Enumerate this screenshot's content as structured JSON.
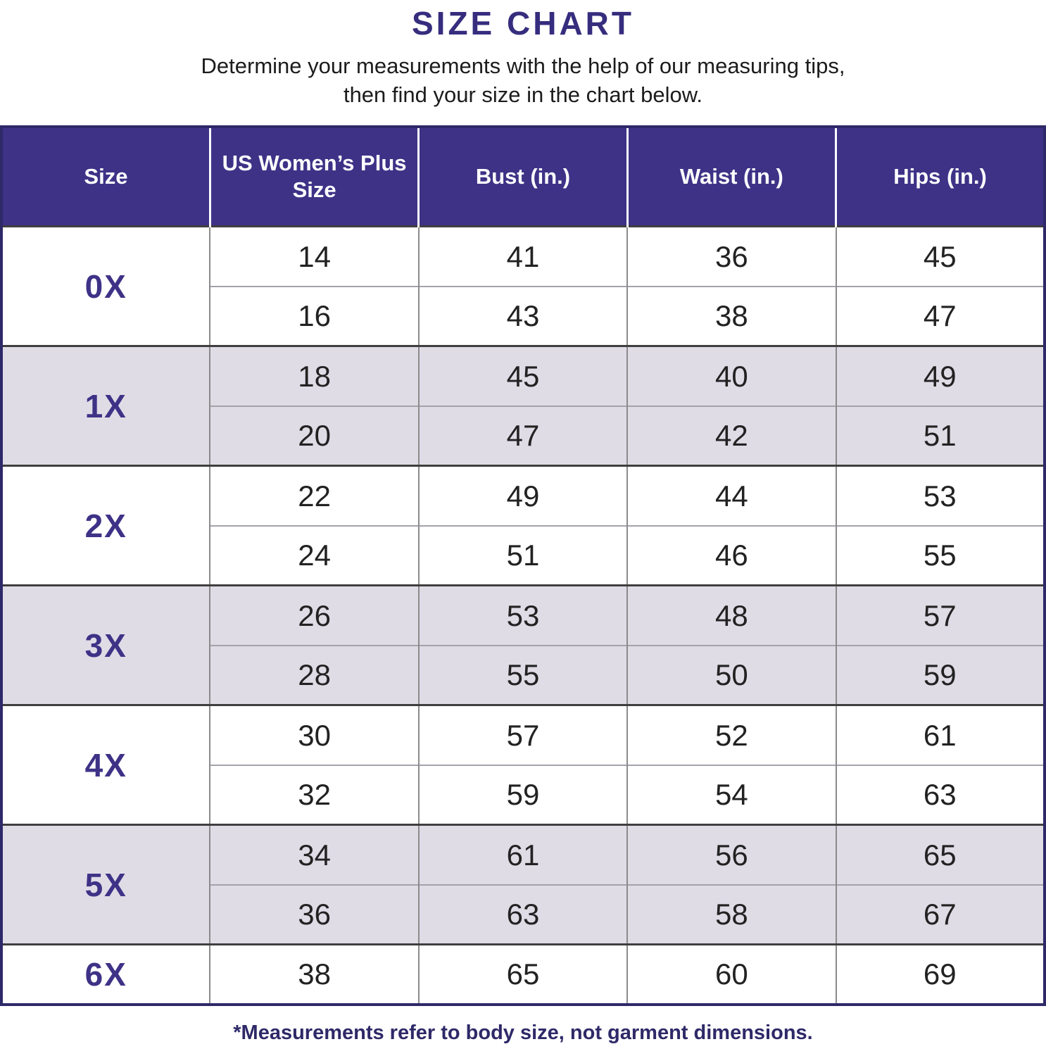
{
  "page": {
    "title": "SIZE CHART",
    "subtitle_line1": "Determine your measurements with the help of our measuring tips,",
    "subtitle_line2": "then find your size in the chart below.",
    "footnote": "*Measurements refer to body size, not garment dimensions."
  },
  "colors": {
    "header_bg": "#3E3287",
    "title_text": "#362D7E",
    "size_label_text": "#3E3287",
    "row_bg": "#FFFFFF",
    "row_alt_bg": "#E0DCE6",
    "data_text": "#222222",
    "outer_border": "#2E2968",
    "group_divider": "#3F3F3F",
    "cell_divider": "#8B8B8B"
  },
  "chart_data": {
    "type": "table",
    "title": "SIZE CHART",
    "columns": [
      "Size",
      "US Women’s Plus Size",
      "Bust (in.)",
      "Waist (in.)",
      "Hips (in.)"
    ],
    "groups": [
      {
        "size": "0X",
        "rows": [
          [
            14,
            41,
            36,
            45
          ],
          [
            16,
            43,
            38,
            47
          ]
        ]
      },
      {
        "size": "1X",
        "rows": [
          [
            18,
            45,
            40,
            49
          ],
          [
            20,
            47,
            42,
            51
          ]
        ]
      },
      {
        "size": "2X",
        "rows": [
          [
            22,
            49,
            44,
            53
          ],
          [
            24,
            51,
            46,
            55
          ]
        ]
      },
      {
        "size": "3X",
        "rows": [
          [
            26,
            53,
            48,
            57
          ],
          [
            28,
            55,
            50,
            59
          ]
        ]
      },
      {
        "size": "4X",
        "rows": [
          [
            30,
            57,
            52,
            61
          ],
          [
            32,
            59,
            54,
            63
          ]
        ]
      },
      {
        "size": "5X",
        "rows": [
          [
            34,
            61,
            56,
            65
          ],
          [
            36,
            63,
            58,
            67
          ]
        ]
      },
      {
        "size": "6X",
        "rows": [
          [
            38,
            65,
            60,
            69
          ]
        ]
      }
    ],
    "note": "*Measurements refer to body size, not garment dimensions."
  }
}
